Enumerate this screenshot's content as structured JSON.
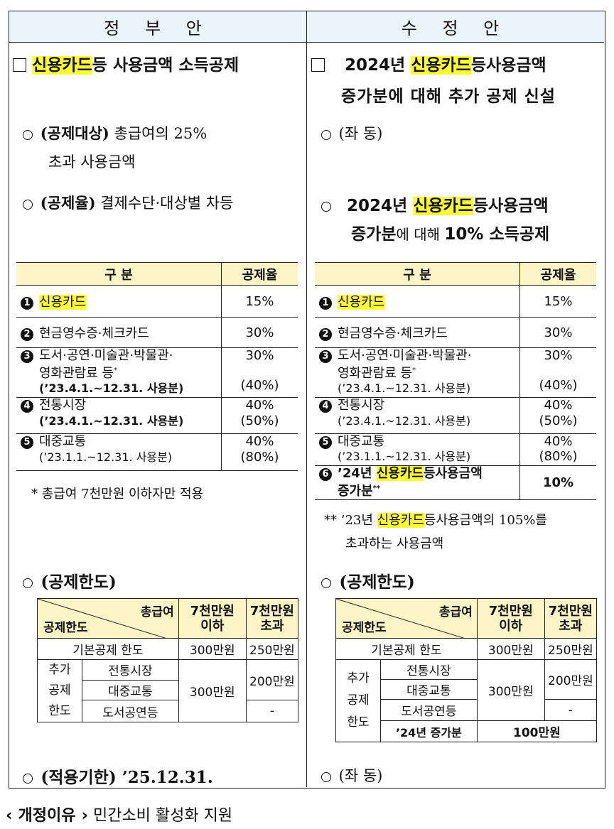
{
  "header": {
    "left": "정 부 안",
    "right": "수 정 안"
  },
  "left": {
    "title_hl": "신용카드",
    "title_rest": "등 사용금액 소득공제",
    "target_label": "(공제대상)",
    "target_text_1": " 총급여의 25%",
    "target_text_2": "초과 사용금액",
    "rate_label": "(공제율)",
    "rate_text": " 결제수단·대상별 차등",
    "limit_label": "(공제한도)",
    "period_label": "(적용기한)",
    "period_value": " ’25.12.31.",
    "note": "*  총급여 7천만원 이하자만 적용"
  },
  "right": {
    "title_pre": "2024년 ",
    "title_hl": "신용카드",
    "title_rest": "등사용금액",
    "title_line2": "증가분에 대해 추가 공제 신설",
    "same1": " (좌  동)",
    "rate_pre": "2024년 ",
    "rate_hl": "신용카드",
    "rate_rest": "등사용금액",
    "rate_line2_b": "증가분",
    "rate_line2_m": "에 대해 ",
    "rate_line2_b2": "10% 소득공제",
    "note_pre": "**  ’23년 ",
    "note_hl": "신용카드",
    "note_rest": "등사용금액의 105%를",
    "note_line2": "초과하는 사용금액",
    "limit_label": "(공제한도)",
    "same2": " (좌  동)"
  },
  "rate_table": {
    "h1": "구  분",
    "h2": "공제율",
    "r1_n": "1",
    "r1_hl": "신용카드",
    "r1_v": "15%",
    "r2_n": "2",
    "r2_l": "현금영수증·체크카드",
    "r2_v": "30%",
    "r3_n": "3",
    "r3_l1": "도서·공연·미술관·박물관·",
    "r3_l2": "영화관람료 등",
    "r3_star": "*",
    "r3_v": "30%",
    "r3_sub": "(’23.4.1.~12.31. 사용분)",
    "r3_v2": "(40%)",
    "r4_n": "4",
    "r4_l": "전통시장",
    "r4_v": "40%",
    "r4_sub": "(’23.4.1.~12.31. 사용분)",
    "r4_v2": "(50%)",
    "r5_n": "5",
    "r5_l": "대중교통",
    "r5_v": "40%",
    "r5_sub": "(’23.1.1.~12.31. 사용분)",
    "r5_v2": "(80%)",
    "r6_n": "6",
    "r6_pre": "’24년 ",
    "r6_hl": "신용카드",
    "r6_rest": "등사용금액",
    "r6_l2": "증가분",
    "r6_star": "**",
    "r6_v": "10%"
  },
  "limit_table": {
    "h_top": "총급여",
    "h_bottom": "공제한도",
    "c1": "7천만원\n이하",
    "c1a": "7천만원",
    "c1b": "이하",
    "c2a": "7천만원",
    "c2b": "초과",
    "base": "기본공제 한도",
    "base_v1": "300만원",
    "base_v2": "250만원",
    "extra_a": "추가",
    "extra_b": "공제",
    "extra_c": "한도",
    "i1": "전통시장",
    "i2": "대중교통",
    "i3": "도서공연등",
    "ex_v1": "300만원",
    "ex_v2": "200만원",
    "dash": "-",
    "i4": "’24년 증가분",
    "i4_v": "100만원"
  },
  "footer": {
    "label": "개정이유",
    "text": " 민간소비 활성화 지원"
  }
}
